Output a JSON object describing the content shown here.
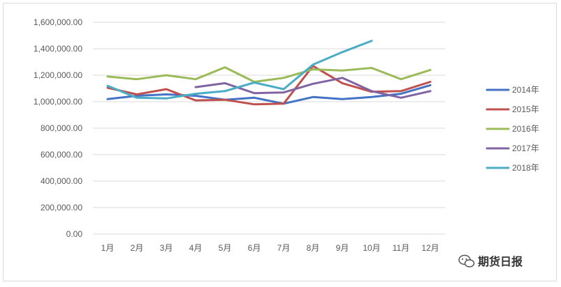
{
  "chart_data": {
    "type": "line",
    "categories": [
      "1月",
      "2月",
      "3月",
      "4月",
      "5月",
      "6月",
      "7月",
      "8月",
      "9月",
      "10月",
      "11月",
      "12月"
    ],
    "ylim": [
      0,
      1600000
    ],
    "yticks": [
      0,
      200000,
      400000,
      600000,
      800000,
      1000000,
      1200000,
      1400000,
      1600000
    ],
    "ytick_labels": [
      "0.00",
      "200,000.00",
      "400,000.00",
      "600,000.00",
      "800,000.00",
      "1,000,000.00",
      "1,200,000.00",
      "1,400,000.00",
      "1,600,000.00"
    ],
    "grid": true,
    "legend": "right",
    "series": [
      {
        "name": "2014年",
        "color": "#4472C4",
        "values": [
          1020000,
          1045000,
          1055000,
          1045000,
          1015000,
          1030000,
          985000,
          1035000,
          1020000,
          1035000,
          1060000,
          1125000
        ]
      },
      {
        "name": "2015年",
        "color": "#C0504D",
        "values": [
          1105000,
          1055000,
          1095000,
          1010000,
          1015000,
          980000,
          985000,
          1270000,
          1140000,
          1075000,
          1080000,
          1150000
        ]
      },
      {
        "name": "2016年",
        "color": "#9BBB59",
        "values": [
          1190000,
          1170000,
          1200000,
          1170000,
          1260000,
          1150000,
          1180000,
          1245000,
          1235000,
          1255000,
          1170000,
          1240000
        ]
      },
      {
        "name": "2017年",
        "color": "#8064A2",
        "values": [
          null,
          null,
          null,
          1110000,
          1140000,
          1065000,
          1070000,
          1135000,
          1180000,
          1080000,
          1030000,
          1080000
        ]
      },
      {
        "name": "2018年",
        "color": "#4BACC6",
        "values": [
          1120000,
          1030000,
          1025000,
          1060000,
          1080000,
          1145000,
          1095000,
          1280000,
          1375000,
          1460000,
          null,
          null
        ]
      }
    ]
  },
  "watermark": {
    "icon": "wechat-icon",
    "text": "期货日报"
  }
}
